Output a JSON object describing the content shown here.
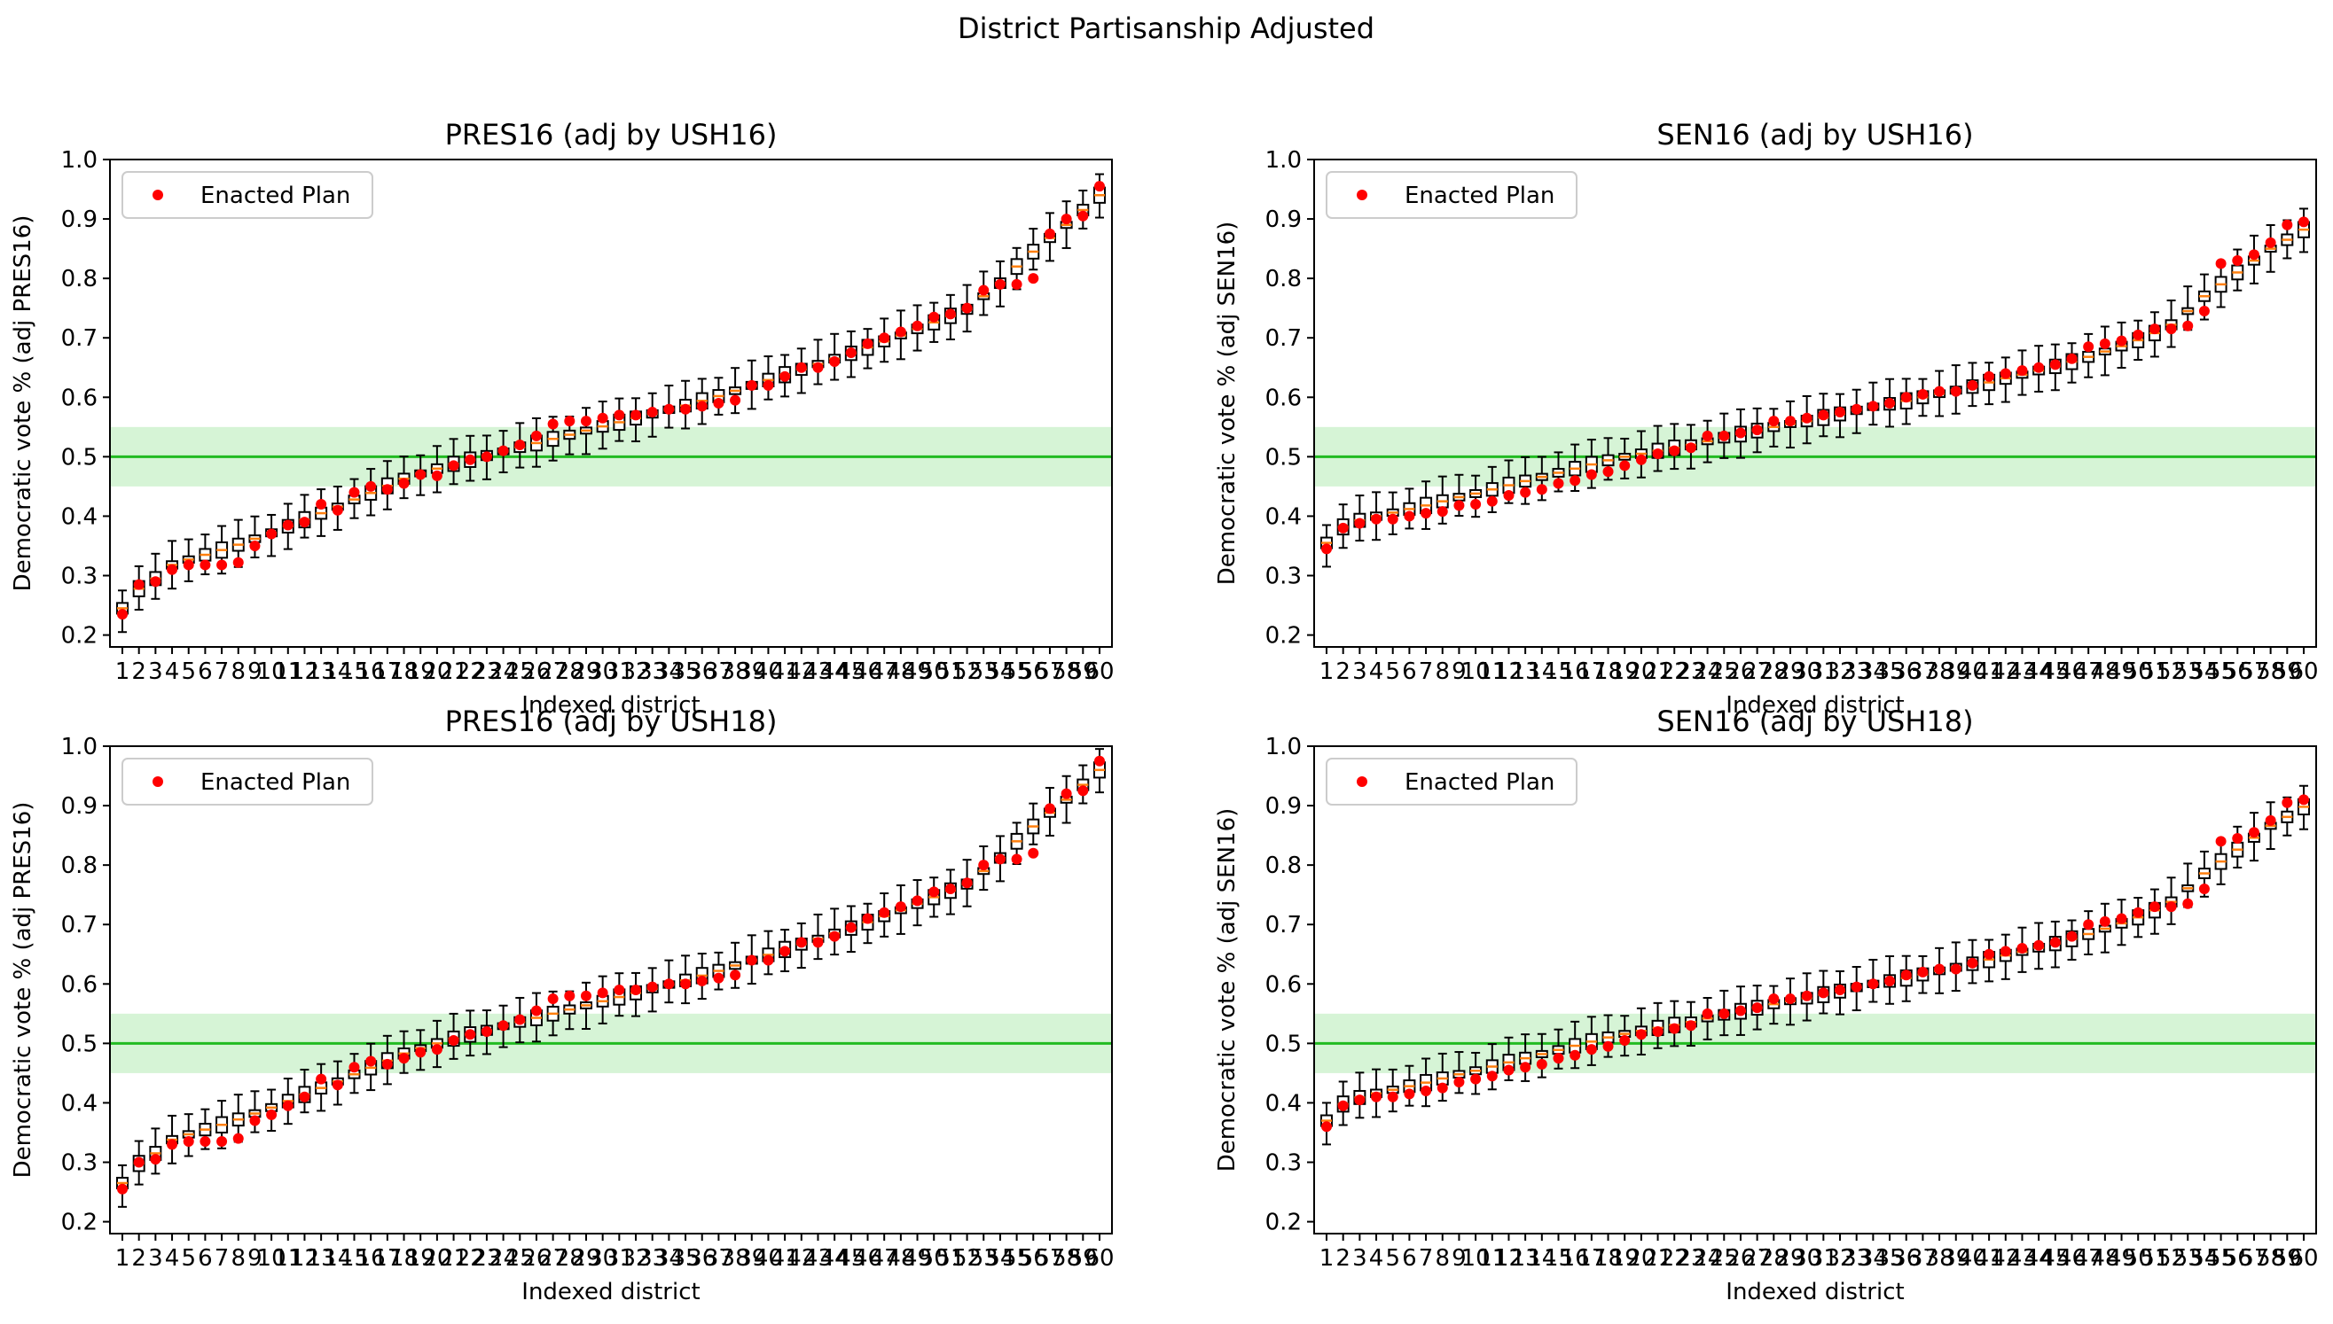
{
  "figure": {
    "suptitle": "District Partisanship Adjusted"
  },
  "colors": {
    "enacted": "#ff0000",
    "median": "#ff7f0e",
    "box": "#000000",
    "threshold_line": "#22bb22",
    "band_fill": "#c8f0c8"
  },
  "chart_data": [
    {
      "type": "box",
      "title": "PRES16 (adj by USH16)",
      "xlabel": "Indexed district",
      "ylabel": "Democratic vote % (adj PRES16)",
      "ylim": [
        0.18,
        1.0
      ],
      "yticks": [
        "0.2",
        "0.3",
        "0.4",
        "0.5",
        "0.6",
        "0.7",
        "0.8",
        "0.9",
        "1.0"
      ],
      "xticks": [
        "1",
        "2",
        "3",
        "4",
        "5",
        "6",
        "7",
        "8",
        "9",
        "10",
        "11",
        "12",
        "13",
        "14",
        "15",
        "16",
        "17",
        "18",
        "19",
        "20",
        "21",
        "22",
        "23",
        "24",
        "25",
        "26",
        "27",
        "28",
        "29",
        "30",
        "31",
        "32",
        "33",
        "34",
        "35",
        "36",
        "37",
        "38",
        "39",
        "40",
        "41",
        "42",
        "43",
        "44",
        "45",
        "46",
        "47",
        "48",
        "49",
        "50",
        "51",
        "52",
        "53",
        "54",
        "55",
        "56",
        "57",
        "58",
        "59",
        "60"
      ],
      "reference_line": 0.5,
      "band": [
        0.45,
        0.55
      ],
      "legend": {
        "label": "Enacted Plan",
        "position": "upper-left"
      },
      "medians": [
        0.245,
        0.278,
        0.295,
        0.318,
        0.327,
        0.335,
        0.343,
        0.352,
        0.362,
        0.372,
        0.383,
        0.394,
        0.405,
        0.416,
        0.428,
        0.439,
        0.451,
        0.463,
        0.472,
        0.48,
        0.488,
        0.495,
        0.502,
        0.509,
        0.516,
        0.523,
        0.53,
        0.537,
        0.544,
        0.551,
        0.558,
        0.565,
        0.572,
        0.579,
        0.586,
        0.594,
        0.602,
        0.611,
        0.62,
        0.629,
        0.638,
        0.647,
        0.656,
        0.665,
        0.674,
        0.684,
        0.694,
        0.704,
        0.715,
        0.726,
        0.737,
        0.748,
        0.77,
        0.792,
        0.82,
        0.845,
        0.868,
        0.89,
        0.915,
        0.94
      ],
      "enacted": [
        0.235,
        0.285,
        0.29,
        0.31,
        0.318,
        0.318,
        0.318,
        0.322,
        0.35,
        0.37,
        0.385,
        0.39,
        0.42,
        0.41,
        0.44,
        0.45,
        0.445,
        0.455,
        0.47,
        0.468,
        0.485,
        0.495,
        0.5,
        0.51,
        0.52,
        0.535,
        0.555,
        0.56,
        0.56,
        0.565,
        0.57,
        0.57,
        0.575,
        0.58,
        0.58,
        0.585,
        0.59,
        0.595,
        0.62,
        0.62,
        0.635,
        0.65,
        0.65,
        0.66,
        0.675,
        0.69,
        0.7,
        0.71,
        0.72,
        0.735,
        0.74,
        0.75,
        0.78,
        0.79,
        0.79,
        0.8,
        0.875,
        0.9,
        0.905,
        0.955
      ]
    },
    {
      "type": "box",
      "title": "SEN16 (adj by USH16)",
      "xlabel": "Indexed district",
      "ylabel": "Democratic vote % (adj SEN16)",
      "ylim": [
        0.18,
        1.0
      ],
      "yticks": [
        "0.2",
        "0.3",
        "0.4",
        "0.5",
        "0.6",
        "0.7",
        "0.8",
        "0.9",
        "1.0"
      ],
      "xticks": [
        "1",
        "2",
        "3",
        "4",
        "5",
        "6",
        "7",
        "8",
        "9",
        "10",
        "11",
        "12",
        "13",
        "14",
        "15",
        "16",
        "17",
        "18",
        "19",
        "20",
        "21",
        "22",
        "23",
        "24",
        "25",
        "26",
        "27",
        "28",
        "29",
        "30",
        "31",
        "32",
        "33",
        "34",
        "35",
        "36",
        "37",
        "38",
        "39",
        "40",
        "41",
        "42",
        "43",
        "44",
        "45",
        "46",
        "47",
        "48",
        "49",
        "50",
        "51",
        "52",
        "53",
        "54",
        "55",
        "56",
        "57",
        "58",
        "59",
        "60"
      ],
      "reference_line": 0.5,
      "band": [
        0.45,
        0.55
      ],
      "legend": {
        "label": "Enacted Plan",
        "position": "upper-left"
      },
      "medians": [
        0.355,
        0.382,
        0.393,
        0.4,
        0.406,
        0.412,
        0.418,
        0.425,
        0.432,
        0.438,
        0.445,
        0.452,
        0.459,
        0.466,
        0.473,
        0.48,
        0.487,
        0.494,
        0.5,
        0.505,
        0.51,
        0.515,
        0.52,
        0.526,
        0.532,
        0.538,
        0.544,
        0.55,
        0.555,
        0.56,
        0.566,
        0.572,
        0.578,
        0.584,
        0.589,
        0.594,
        0.6,
        0.606,
        0.612,
        0.618,
        0.625,
        0.632,
        0.638,
        0.645,
        0.652,
        0.66,
        0.668,
        0.677,
        0.686,
        0.696,
        0.708,
        0.722,
        0.745,
        0.77,
        0.79,
        0.81,
        0.83,
        0.85,
        0.865,
        0.882
      ],
      "enacted": [
        0.345,
        0.38,
        0.388,
        0.395,
        0.395,
        0.4,
        0.405,
        0.408,
        0.418,
        0.42,
        0.425,
        0.435,
        0.44,
        0.445,
        0.455,
        0.46,
        0.47,
        0.475,
        0.485,
        0.495,
        0.505,
        0.51,
        0.515,
        0.535,
        0.535,
        0.54,
        0.545,
        0.56,
        0.56,
        0.565,
        0.57,
        0.575,
        0.58,
        0.585,
        0.59,
        0.6,
        0.605,
        0.61,
        0.61,
        0.62,
        0.635,
        0.64,
        0.645,
        0.65,
        0.655,
        0.665,
        0.685,
        0.69,
        0.695,
        0.705,
        0.715,
        0.715,
        0.72,
        0.745,
        0.825,
        0.83,
        0.84,
        0.86,
        0.89,
        0.895
      ]
    },
    {
      "type": "box",
      "title": "PRES16 (adj by USH18)",
      "xlabel": "Indexed district",
      "ylabel": "Democratic vote % (adj PRES16)",
      "ylim": [
        0.18,
        1.0
      ],
      "yticks": [
        "0.2",
        "0.3",
        "0.4",
        "0.5",
        "0.6",
        "0.7",
        "0.8",
        "0.9",
        "1.0"
      ],
      "xticks": [
        "1",
        "2",
        "3",
        "4",
        "5",
        "6",
        "7",
        "8",
        "9",
        "10",
        "11",
        "12",
        "13",
        "14",
        "15",
        "16",
        "17",
        "18",
        "19",
        "20",
        "21",
        "22",
        "23",
        "24",
        "25",
        "26",
        "27",
        "28",
        "29",
        "30",
        "31",
        "32",
        "33",
        "34",
        "35",
        "36",
        "37",
        "38",
        "39",
        "40",
        "41",
        "42",
        "43",
        "44",
        "45",
        "46",
        "47",
        "48",
        "49",
        "50",
        "51",
        "52",
        "53",
        "54",
        "55",
        "56",
        "57",
        "58",
        "59",
        "60"
      ],
      "reference_line": 0.5,
      "band": [
        0.45,
        0.55
      ],
      "legend": {
        "label": "Enacted Plan",
        "position": "upper-left"
      },
      "medians": [
        0.265,
        0.298,
        0.315,
        0.338,
        0.347,
        0.355,
        0.363,
        0.372,
        0.382,
        0.392,
        0.403,
        0.414,
        0.425,
        0.436,
        0.448,
        0.459,
        0.471,
        0.483,
        0.492,
        0.5,
        0.508,
        0.515,
        0.522,
        0.529,
        0.536,
        0.543,
        0.55,
        0.557,
        0.564,
        0.571,
        0.578,
        0.585,
        0.592,
        0.599,
        0.606,
        0.614,
        0.622,
        0.631,
        0.64,
        0.649,
        0.658,
        0.667,
        0.676,
        0.685,
        0.694,
        0.704,
        0.714,
        0.724,
        0.735,
        0.746,
        0.757,
        0.768,
        0.79,
        0.812,
        0.84,
        0.865,
        0.888,
        0.91,
        0.935,
        0.96
      ],
      "enacted": [
        0.255,
        0.3,
        0.305,
        0.33,
        0.335,
        0.335,
        0.335,
        0.34,
        0.37,
        0.38,
        0.395,
        0.41,
        0.44,
        0.43,
        0.46,
        0.47,
        0.465,
        0.475,
        0.485,
        0.49,
        0.505,
        0.515,
        0.52,
        0.53,
        0.54,
        0.555,
        0.575,
        0.58,
        0.58,
        0.585,
        0.59,
        0.59,
        0.595,
        0.6,
        0.6,
        0.605,
        0.61,
        0.615,
        0.64,
        0.64,
        0.655,
        0.67,
        0.67,
        0.68,
        0.695,
        0.71,
        0.72,
        0.73,
        0.74,
        0.755,
        0.76,
        0.77,
        0.8,
        0.81,
        0.81,
        0.82,
        0.895,
        0.92,
        0.925,
        0.975
      ]
    },
    {
      "type": "box",
      "title": "SEN16 (adj by USH18)",
      "xlabel": "Indexed district",
      "ylabel": "Democratic vote % (adj SEN16)",
      "ylim": [
        0.18,
        1.0
      ],
      "yticks": [
        "0.2",
        "0.3",
        "0.4",
        "0.5",
        "0.6",
        "0.7",
        "0.8",
        "0.9",
        "1.0"
      ],
      "xticks": [
        "1",
        "2",
        "3",
        "4",
        "5",
        "6",
        "7",
        "8",
        "9",
        "10",
        "11",
        "12",
        "13",
        "14",
        "15",
        "16",
        "17",
        "18",
        "19",
        "20",
        "21",
        "22",
        "23",
        "24",
        "25",
        "26",
        "27",
        "28",
        "29",
        "30",
        "31",
        "32",
        "33",
        "34",
        "35",
        "36",
        "37",
        "38",
        "39",
        "40",
        "41",
        "42",
        "43",
        "44",
        "45",
        "46",
        "47",
        "48",
        "49",
        "50",
        "51",
        "52",
        "53",
        "54",
        "55",
        "56",
        "57",
        "58",
        "59",
        "60"
      ],
      "reference_line": 0.5,
      "band": [
        0.45,
        0.55
      ],
      "legend": {
        "label": "Enacted Plan",
        "position": "upper-left"
      },
      "medians": [
        0.37,
        0.398,
        0.409,
        0.416,
        0.422,
        0.428,
        0.434,
        0.441,
        0.448,
        0.454,
        0.461,
        0.468,
        0.475,
        0.482,
        0.489,
        0.496,
        0.503,
        0.51,
        0.516,
        0.521,
        0.526,
        0.531,
        0.536,
        0.542,
        0.548,
        0.554,
        0.56,
        0.566,
        0.571,
        0.576,
        0.582,
        0.588,
        0.594,
        0.6,
        0.605,
        0.61,
        0.616,
        0.622,
        0.628,
        0.634,
        0.641,
        0.648,
        0.654,
        0.661,
        0.668,
        0.676,
        0.684,
        0.693,
        0.702,
        0.712,
        0.724,
        0.738,
        0.761,
        0.786,
        0.806,
        0.826,
        0.846,
        0.866,
        0.881,
        0.898
      ],
      "enacted": [
        0.36,
        0.395,
        0.405,
        0.41,
        0.41,
        0.415,
        0.42,
        0.425,
        0.435,
        0.44,
        0.445,
        0.455,
        0.46,
        0.465,
        0.475,
        0.48,
        0.49,
        0.495,
        0.505,
        0.515,
        0.52,
        0.525,
        0.53,
        0.55,
        0.55,
        0.555,
        0.56,
        0.575,
        0.575,
        0.58,
        0.585,
        0.59,
        0.595,
        0.6,
        0.605,
        0.615,
        0.62,
        0.625,
        0.625,
        0.635,
        0.65,
        0.655,
        0.66,
        0.665,
        0.67,
        0.68,
        0.7,
        0.705,
        0.71,
        0.72,
        0.73,
        0.73,
        0.735,
        0.76,
        0.84,
        0.845,
        0.855,
        0.875,
        0.905,
        0.91
      ]
    }
  ]
}
